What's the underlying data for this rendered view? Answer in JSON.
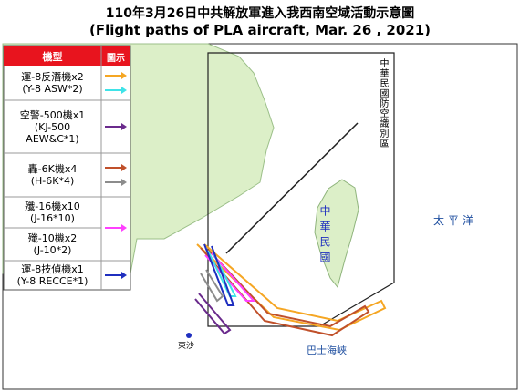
{
  "header": {
    "title": "110年3月26日中共解放軍進入我西南空域活動示意圖",
    "subtitle": "(Flight paths of PLA aircraft, Mar. 26 , 2021)"
  },
  "legend": {
    "headers": [
      "機型",
      "圖示"
    ],
    "rows": [
      {
        "lines": [
          "運-8反潛機x2",
          "(Y-8 ASW*2)"
        ],
        "colors": [
          "#f5a623",
          "#3fe3e8"
        ]
      },
      {
        "lines": [
          "空警-500機x1",
          "(KJ-500",
          "AEW&C*1)"
        ],
        "colors": [
          "#6a2a8c"
        ]
      },
      {
        "lines": [
          "轟-6K機x4",
          "(H-6K*4)"
        ],
        "colors": [
          "#c0502a",
          "#8c8c8c"
        ]
      },
      {
        "lines": [
          "殲-16機x10",
          "(J-16*10)"
        ],
        "colors": [
          "#ff40ff"
        ]
      },
      {
        "lines": [
          "殲-10機x2",
          "(J-10*2)"
        ],
        "colors": []
      },
      {
        "lines": [
          "運-8技偵機x1",
          "(Y-8 RECCE*1)"
        ],
        "colors": [
          "#1f2fbf"
        ]
      }
    ]
  },
  "map": {
    "adiz": "中華民國防空識別區",
    "taiwan": "中華民國",
    "pacific": "太平洋",
    "strait": "巴士海峽",
    "dongsha": "東沙"
  }
}
